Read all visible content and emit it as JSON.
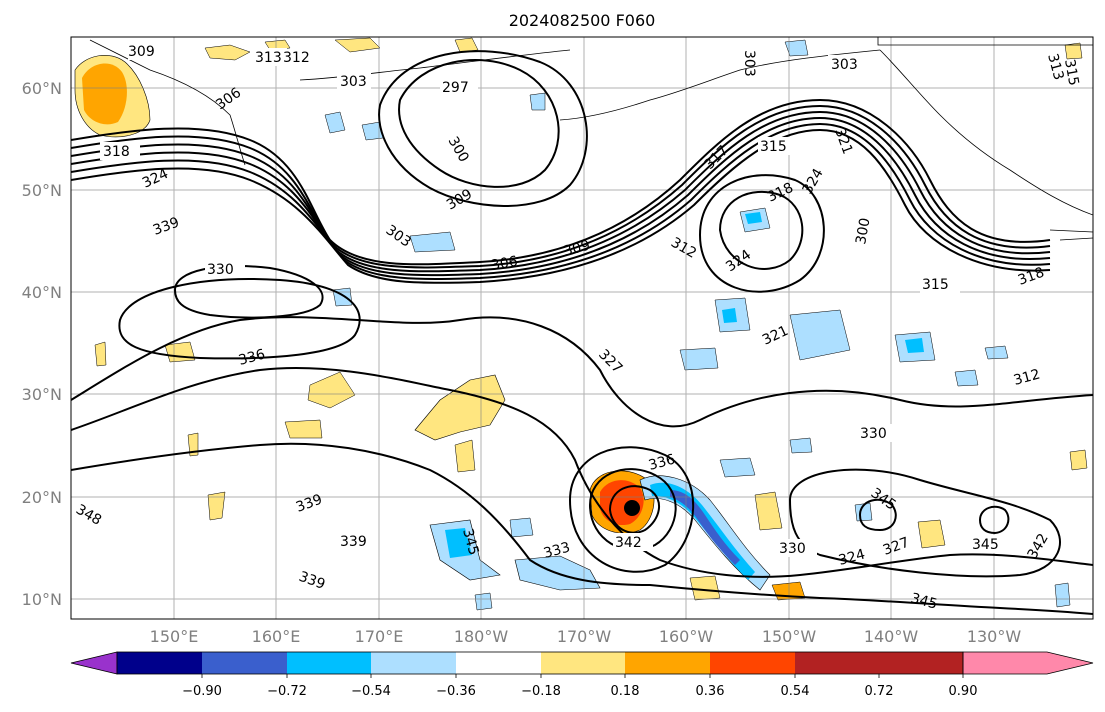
{
  "title": "2024082500 F060",
  "lat_ticks": [
    "60°N",
    "50°N",
    "40°N",
    "30°N",
    "20°N",
    "10°N"
  ],
  "lon_ticks": [
    "150°E",
    "160°E",
    "170°E",
    "180°W",
    "170°W",
    "160°W",
    "150°W",
    "140°W",
    "130°W"
  ],
  "colorbar": {
    "colors": [
      "#9932CC",
      "#00008B",
      "#3A5FCD",
      "#00BFFF",
      "#ADDFFF",
      "#FFFFFF",
      "#FFE680",
      "#FFA500",
      "#FF4500",
      "#B22222",
      "#FF88AA"
    ],
    "labels": [
      "−0.90",
      "−0.72",
      "−0.54",
      "−0.36",
      "−0.18",
      "0.18",
      "0.36",
      "0.54",
      "0.72",
      "0.90"
    ]
  },
  "contour_labels": {
    "l309a": "309",
    "l313": "313",
    "l312a": "312",
    "l306a": "306",
    "l303a": "303",
    "l297": "297",
    "l318a": "318",
    "l324a": "324",
    "l339a": "339",
    "l330a": "330",
    "l336": "336",
    "l300a": "300",
    "l309b": "309",
    "l303b": "303",
    "l306b": "306",
    "l309c": "309",
    "l303c": "303",
    "l303d": "303",
    "l317": "317",
    "l315a": "315",
    "l318b": "318",
    "l321a": "321",
    "l324b": "324",
    "l324c": "324",
    "l312b": "312",
    "l300b": "300",
    "l315b": "315",
    "l318c": "318",
    "l321b": "321",
    "l312c": "312",
    "l327": "327",
    "l330b": "330",
    "l339b": "339",
    "l339c": "339",
    "l339d": "339",
    "l348": "348",
    "l345a": "345",
    "l333": "333",
    "l342a": "342",
    "l336b": "336",
    "l330c": "330",
    "l324d": "324",
    "l327b": "327",
    "l345b": "345",
    "l342b": "342",
    "l345c": "345",
    "l345d": "345",
    "l313b": "313",
    "l315c": "315"
  }
}
